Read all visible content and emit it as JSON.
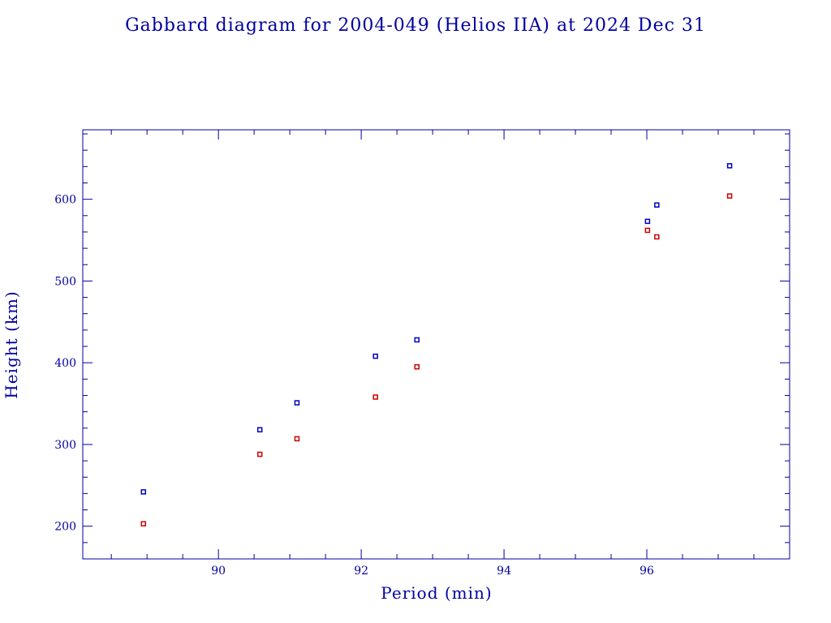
{
  "chart_data": {
    "type": "scatter",
    "title": "Gabbard diagram for 2004-049 (Helios IIA) at 2024 Dec 31",
    "xlabel": "Period (min)",
    "ylabel": "Height (km)",
    "xlim": [
      88.1,
      98.0
    ],
    "ylim": [
      160,
      685
    ],
    "xticks": [
      90,
      92,
      94,
      96
    ],
    "xtick_labels": [
      "90",
      "92",
      "94",
      "96"
    ],
    "yticks": [
      200,
      300,
      400,
      500,
      600
    ],
    "ytick_labels": [
      "200",
      "300",
      "400",
      "500",
      "600"
    ],
    "x_minor_step": 0.5,
    "y_minor_step": 20,
    "grid": false,
    "series": [
      {
        "color": "#0000c0",
        "points": [
          {
            "x": 88.95,
            "y": 242
          },
          {
            "x": 90.58,
            "y": 318
          },
          {
            "x": 91.1,
            "y": 351
          },
          {
            "x": 92.2,
            "y": 408
          },
          {
            "x": 92.78,
            "y": 428
          },
          {
            "x": 96.01,
            "y": 573
          },
          {
            "x": 96.14,
            "y": 593
          },
          {
            "x": 97.16,
            "y": 641
          }
        ]
      },
      {
        "color": "#cc0000",
        "points": [
          {
            "x": 88.95,
            "y": 203
          },
          {
            "x": 90.58,
            "y": 288
          },
          {
            "x": 91.1,
            "y": 307
          },
          {
            "x": 92.2,
            "y": 358
          },
          {
            "x": 92.78,
            "y": 395
          },
          {
            "x": 96.01,
            "y": 562
          },
          {
            "x": 96.14,
            "y": 554
          },
          {
            "x": 97.16,
            "y": 604
          }
        ]
      }
    ]
  }
}
